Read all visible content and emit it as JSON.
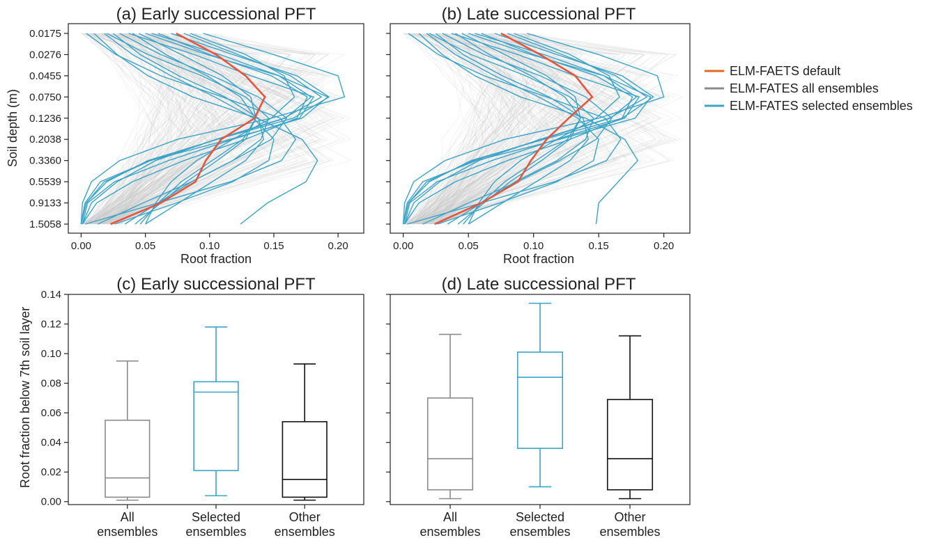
{
  "colors": {
    "default": "#e8553d",
    "default_legend": "#e06a1f",
    "all": "#8a8a8a",
    "all_bg": "#c8c8c8",
    "selected": "#3aa4c8",
    "other": "#111111"
  },
  "legend": [
    {
      "label": "ELM-FAETS default",
      "color": "#e8553d",
      "swatch": "#e06a1f"
    },
    {
      "label": "ELM-FATES all ensembles",
      "color": "#8a8a8a",
      "swatch": "#8a8a8a"
    },
    {
      "label": "ELM-FATES selected ensembles",
      "color": "#3aa4c8",
      "swatch": "#3aa4c8"
    }
  ],
  "chart_data": [
    {
      "panel": "a",
      "type": "line",
      "title": "(a) Early successional PFT",
      "xlabel": "Root fraction",
      "ylabel": "Soil depth (m)",
      "xlim": [
        -0.01,
        0.22
      ],
      "xticks": [
        0.0,
        0.05,
        0.1,
        0.15,
        0.2
      ],
      "xtick_labels": [
        "0.00",
        "0.05",
        "0.10",
        "0.15",
        "0.20"
      ],
      "depths": [
        "0.0175",
        "0.0276",
        "0.0455",
        "0.0750",
        "0.1236",
        "0.2038",
        "0.3360",
        "0.5539",
        "0.9133",
        "1.5058"
      ],
      "default": [
        0.074,
        0.105,
        0.128,
        0.143,
        0.135,
        0.109,
        0.097,
        0.089,
        0.062,
        0.023
      ],
      "selected": [
        [
          0.01,
          0.028,
          0.052,
          0.087,
          0.137,
          0.172,
          0.184,
          0.175,
          0.145,
          0.124
        ],
        [
          0.03,
          0.062,
          0.102,
          0.138,
          0.16,
          0.148,
          0.118,
          0.086,
          0.048,
          0.013
        ],
        [
          0.004,
          0.027,
          0.062,
          0.11,
          0.155,
          0.167,
          0.156,
          0.116,
          0.06,
          0.003
        ],
        [
          0.018,
          0.04,
          0.07,
          0.104,
          0.134,
          0.15,
          0.146,
          0.118,
          0.074,
          0.026
        ],
        [
          0.05,
          0.098,
          0.154,
          0.192,
          0.172,
          0.116,
          0.054,
          0.015,
          0.003,
          0.0
        ],
        [
          0.037,
          0.088,
          0.132,
          0.181,
          0.17,
          0.118,
          0.068,
          0.026,
          0.005,
          0.001
        ],
        [
          0.08,
          0.122,
          0.163,
          0.187,
          0.158,
          0.105,
          0.058,
          0.028,
          0.008,
          0.001
        ],
        [
          0.06,
          0.1,
          0.148,
          0.176,
          0.168,
          0.128,
          0.08,
          0.04,
          0.012,
          0.001
        ],
        [
          0.025,
          0.046,
          0.076,
          0.112,
          0.138,
          0.142,
          0.128,
          0.102,
          0.076,
          0.05
        ],
        [
          0.055,
          0.108,
          0.154,
          0.179,
          0.159,
          0.106,
          0.054,
          0.018,
          0.004,
          0.0
        ],
        [
          0.095,
          0.15,
          0.2,
          0.205,
          0.148,
          0.075,
          0.03,
          0.008,
          0.001,
          0.0
        ],
        [
          0.07,
          0.118,
          0.168,
          0.193,
          0.165,
          0.106,
          0.052,
          0.02,
          0.004,
          0.0
        ],
        [
          0.02,
          0.052,
          0.094,
          0.128,
          0.146,
          0.14,
          0.118,
          0.086,
          0.06,
          0.034
        ],
        [
          0.045,
          0.078,
          0.11,
          0.132,
          0.136,
          0.128,
          0.106,
          0.082,
          0.062,
          0.042
        ],
        [
          0.085,
          0.128,
          0.158,
          0.166,
          0.148,
          0.118,
          0.09,
          0.07,
          0.058,
          0.05
        ],
        [
          0.04,
          0.066,
          0.098,
          0.124,
          0.136,
          0.126,
          0.102,
          0.078,
          0.06,
          0.046
        ]
      ]
    },
    {
      "panel": "b",
      "type": "line",
      "title": "(b) Late successional PFT",
      "xlabel": "Root fraction",
      "ylabel": "",
      "xlim": [
        -0.01,
        0.22
      ],
      "xticks": [
        0.0,
        0.05,
        0.1,
        0.15,
        0.2
      ],
      "xtick_labels": [
        "0.00",
        "0.05",
        "0.10",
        "0.15",
        "0.20"
      ],
      "depths": [
        "0.0175",
        "0.0276",
        "0.0455",
        "0.0750",
        "0.1236",
        "0.2038",
        "0.3360",
        "0.5539",
        "0.9133",
        "1.5058"
      ],
      "default": [
        0.075,
        0.105,
        0.132,
        0.145,
        0.127,
        0.11,
        0.098,
        0.088,
        0.06,
        0.024
      ],
      "selected": [
        [
          0.012,
          0.03,
          0.055,
          0.09,
          0.14,
          0.17,
          0.18,
          0.165,
          0.15,
          0.148
        ],
        [
          0.03,
          0.062,
          0.105,
          0.14,
          0.16,
          0.148,
          0.12,
          0.088,
          0.05,
          0.015
        ],
        [
          0.004,
          0.027,
          0.062,
          0.11,
          0.155,
          0.167,
          0.156,
          0.116,
          0.06,
          0.003
        ],
        [
          0.018,
          0.04,
          0.07,
          0.104,
          0.134,
          0.15,
          0.146,
          0.118,
          0.074,
          0.026
        ],
        [
          0.05,
          0.098,
          0.154,
          0.19,
          0.178,
          0.12,
          0.056,
          0.015,
          0.003,
          0.0
        ],
        [
          0.037,
          0.088,
          0.132,
          0.181,
          0.17,
          0.118,
          0.068,
          0.026,
          0.005,
          0.001
        ],
        [
          0.08,
          0.122,
          0.163,
          0.187,
          0.158,
          0.105,
          0.058,
          0.028,
          0.008,
          0.001
        ],
        [
          0.06,
          0.1,
          0.148,
          0.176,
          0.168,
          0.128,
          0.08,
          0.04,
          0.012,
          0.001
        ],
        [
          0.025,
          0.046,
          0.076,
          0.112,
          0.138,
          0.142,
          0.128,
          0.102,
          0.076,
          0.05
        ],
        [
          0.055,
          0.108,
          0.154,
          0.179,
          0.159,
          0.106,
          0.054,
          0.018,
          0.004,
          0.0
        ],
        [
          0.095,
          0.15,
          0.195,
          0.2,
          0.15,
          0.078,
          0.032,
          0.008,
          0.001,
          0.0
        ],
        [
          0.07,
          0.118,
          0.168,
          0.192,
          0.168,
          0.108,
          0.052,
          0.02,
          0.004,
          0.0
        ],
        [
          0.02,
          0.052,
          0.094,
          0.128,
          0.146,
          0.14,
          0.118,
          0.086,
          0.06,
          0.034
        ],
        [
          0.045,
          0.078,
          0.11,
          0.132,
          0.136,
          0.128,
          0.106,
          0.082,
          0.062,
          0.042
        ],
        [
          0.085,
          0.128,
          0.158,
          0.166,
          0.148,
          0.118,
          0.09,
          0.07,
          0.058,
          0.05
        ],
        [
          0.04,
          0.066,
          0.098,
          0.124,
          0.136,
          0.126,
          0.102,
          0.078,
          0.06,
          0.046
        ]
      ]
    },
    {
      "panel": "c",
      "type": "box",
      "title": "(c) Early successional PFT",
      "ylabel": "Root fraction below 7th soil layer",
      "ylim": [
        -0.002,
        0.14
      ],
      "yticks": [
        0.0,
        0.02,
        0.04,
        0.06,
        0.08,
        0.1,
        0.12,
        0.14
      ],
      "ytick_labels": [
        "0.00",
        "0.02",
        "0.04",
        "0.06",
        "0.08",
        "0.10",
        "0.12",
        "0.14"
      ],
      "categories": [
        "All\nensembles",
        "Selected\nensembles",
        "Other\nensembles"
      ],
      "boxes": [
        {
          "whislo": 0.001,
          "q1": 0.003,
          "med": 0.016,
          "q3": 0.055,
          "whishi": 0.095,
          "color": "#8a8a8a"
        },
        {
          "whislo": 0.004,
          "q1": 0.021,
          "med": 0.074,
          "q3": 0.081,
          "whishi": 0.118,
          "color": "#3aa4c8"
        },
        {
          "whislo": 0.001,
          "q1": 0.003,
          "med": 0.015,
          "q3": 0.054,
          "whishi": 0.093,
          "color": "#111111"
        }
      ]
    },
    {
      "panel": "d",
      "type": "box",
      "title": "(d) Late successional PFT",
      "ylabel": "",
      "ylim": [
        -0.002,
        0.14
      ],
      "yticks": [
        0.0,
        0.02,
        0.04,
        0.06,
        0.08,
        0.1,
        0.12,
        0.14
      ],
      "categories": [
        "All\nensembles",
        "Selected\nensembles",
        "Other\nensembles"
      ],
      "boxes": [
        {
          "whislo": 0.002,
          "q1": 0.008,
          "med": 0.029,
          "q3": 0.07,
          "whishi": 0.113,
          "color": "#8a8a8a"
        },
        {
          "whislo": 0.01,
          "q1": 0.036,
          "med": 0.084,
          "q3": 0.101,
          "whishi": 0.134,
          "color": "#3aa4c8"
        },
        {
          "whislo": 0.002,
          "q1": 0.008,
          "med": 0.029,
          "q3": 0.069,
          "whishi": 0.112,
          "color": "#111111"
        }
      ]
    }
  ]
}
